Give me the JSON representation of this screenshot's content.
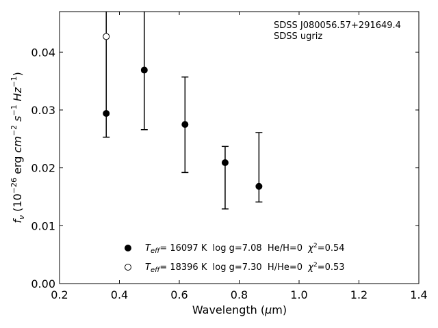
{
  "chart_data": {
    "type": "scatter",
    "xlabel_prefix": "Wavelength (",
    "xlabel_mu": "μ",
    "xlabel_suffix": "m)",
    "ylabel_f": "f",
    "ylabel_nu": "ν",
    "ylabel_open": " (10",
    "ylabel_exp1": "−26",
    "ylabel_erg": " erg ",
    "ylabel_cm": "cm",
    "ylabel_exp2": "−2",
    "ylabel_s": " s",
    "ylabel_exp3": "−1",
    "ylabel_hz": " Hz",
    "ylabel_exp4": "−1",
    "ylabel_close": ")",
    "xlim": [
      0.2,
      1.4
    ],
    "ylim": [
      0.0,
      0.047
    ],
    "xticks": [
      0.2,
      0.4,
      0.6,
      0.8,
      1.0,
      1.2,
      1.4
    ],
    "xtick_labels": [
      "0.2",
      "0.4",
      "0.6",
      "0.8",
      "1.0",
      "1.2",
      "1.4"
    ],
    "yticks": [
      0.0,
      0.01,
      0.02,
      0.03,
      0.04
    ],
    "ytick_labels": [
      "0.00",
      "0.01",
      "0.02",
      "0.03",
      "0.04"
    ],
    "annotations": [
      "SDSS J080056.57+291649.4",
      "SDSS ugriz"
    ],
    "series": [
      {
        "marker": "filled",
        "x": [
          0.356,
          0.483,
          0.619,
          0.753,
          0.866
        ],
        "y": [
          0.0294,
          0.0369,
          0.0275,
          0.0209,
          0.0168
        ],
        "yerr_low": [
          0.0253,
          0.0266,
          0.0192,
          0.0129,
          0.0141
        ],
        "yerr_high": [
          0.047,
          0.047,
          0.0357,
          0.0237,
          0.0261
        ]
      },
      {
        "marker": "open",
        "x": [
          0.356
        ],
        "y": [
          0.0427
        ]
      }
    ],
    "legend": [
      {
        "marker": "filled",
        "T": "T",
        "eff": "eff",
        "rest": "= 16097 K  log g=7.08  He/H=0  ",
        "chi": "χ",
        "chi_exp": "2",
        "chi_val": "=0.54"
      },
      {
        "marker": "open",
        "T": "T",
        "eff": "eff",
        "rest": "= 18396 K  log g=7.30  H/He=0  ",
        "chi": "χ",
        "chi_exp": "2",
        "chi_val": "=0.53"
      }
    ],
    "legend_placement": "lower center",
    "grid": false,
    "colors": {
      "marker": "#000000",
      "errorbar": "#000000"
    }
  }
}
